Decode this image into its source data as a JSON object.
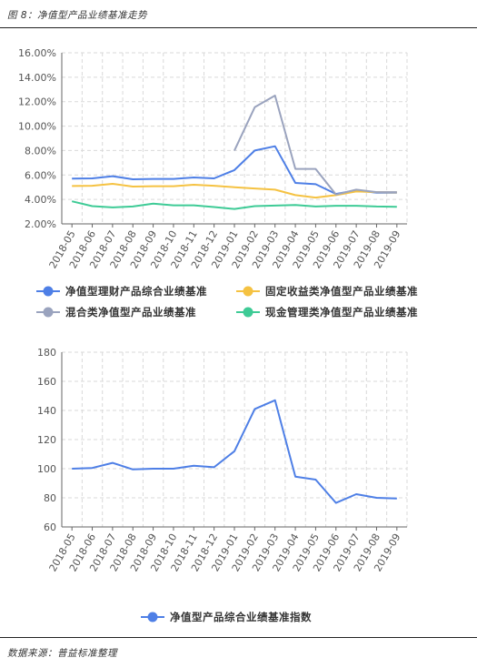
{
  "figure": {
    "title": "图 8：净值型产品业绩基准走势",
    "source": "数据来源：普益标准整理"
  },
  "chart_data": [
    {
      "type": "line",
      "categories": [
        "2018-05",
        "2018-06",
        "2018-07",
        "2018-08",
        "2018-09",
        "2018-10",
        "2018-11",
        "2018-12",
        "2019-01",
        "2019-02",
        "2019-03",
        "2019-04",
        "2019-05",
        "2019-06",
        "2019-07",
        "2019-08",
        "2019-09"
      ],
      "yticks": [
        "2.00%",
        "4.00%",
        "6.00%",
        "8.00%",
        "10.00%",
        "12.00%",
        "14.00%",
        "16.00%"
      ],
      "ylim": [
        2,
        16
      ],
      "grid": true,
      "legend_position": "bottom",
      "series": [
        {
          "name": "净值型理财产品综合业绩基准",
          "color": "#4e7fe6",
          "values": [
            5.7,
            5.72,
            5.9,
            5.65,
            5.68,
            5.68,
            5.8,
            5.72,
            6.4,
            8.0,
            8.35,
            5.35,
            5.25,
            4.45,
            4.75,
            4.55,
            4.55
          ]
        },
        {
          "name": "固定收益类净值型产品业绩基准",
          "color": "#f5c242",
          "values": [
            5.1,
            5.12,
            5.28,
            5.05,
            5.08,
            5.08,
            5.2,
            5.12,
            5.0,
            4.9,
            4.8,
            4.35,
            4.15,
            4.35,
            4.65,
            4.6,
            4.58
          ]
        },
        {
          "name": "混合类净值型产品业绩基准",
          "color": "#9aa3be",
          "values": [
            null,
            null,
            null,
            null,
            null,
            null,
            null,
            null,
            8.0,
            11.55,
            12.5,
            6.5,
            6.5,
            4.4,
            4.8,
            4.6,
            4.6
          ]
        },
        {
          "name": "现金管理类净值型产品业绩基准",
          "color": "#3ecb96",
          "values": [
            3.85,
            3.45,
            3.35,
            3.42,
            3.65,
            3.52,
            3.52,
            3.38,
            3.22,
            3.45,
            3.5,
            3.55,
            3.42,
            3.48,
            3.48,
            3.42,
            3.4
          ]
        }
      ]
    },
    {
      "type": "line",
      "categories": [
        "2018-05",
        "2018-06",
        "2018-07",
        "2018-08",
        "2018-09",
        "2018-10",
        "2018-11",
        "2018-12",
        "2019-01",
        "2019-02",
        "2019-03",
        "2019-04",
        "2019-05",
        "2019-06",
        "2019-07",
        "2019-08",
        "2019-09"
      ],
      "yticks": [
        "60",
        "80",
        "100",
        "120",
        "140",
        "160",
        "180"
      ],
      "ylim": [
        60,
        180
      ],
      "grid": true,
      "legend_position": "bottom",
      "series": [
        {
          "name": "净值型产品综合业绩基准指数",
          "color": "#4e7fe6",
          "values": [
            100,
            100.5,
            104,
            99.5,
            100,
            100,
            102,
            101,
            112,
            141,
            147,
            94.5,
            92.5,
            76.5,
            82.5,
            80,
            79.5
          ]
        }
      ]
    }
  ]
}
